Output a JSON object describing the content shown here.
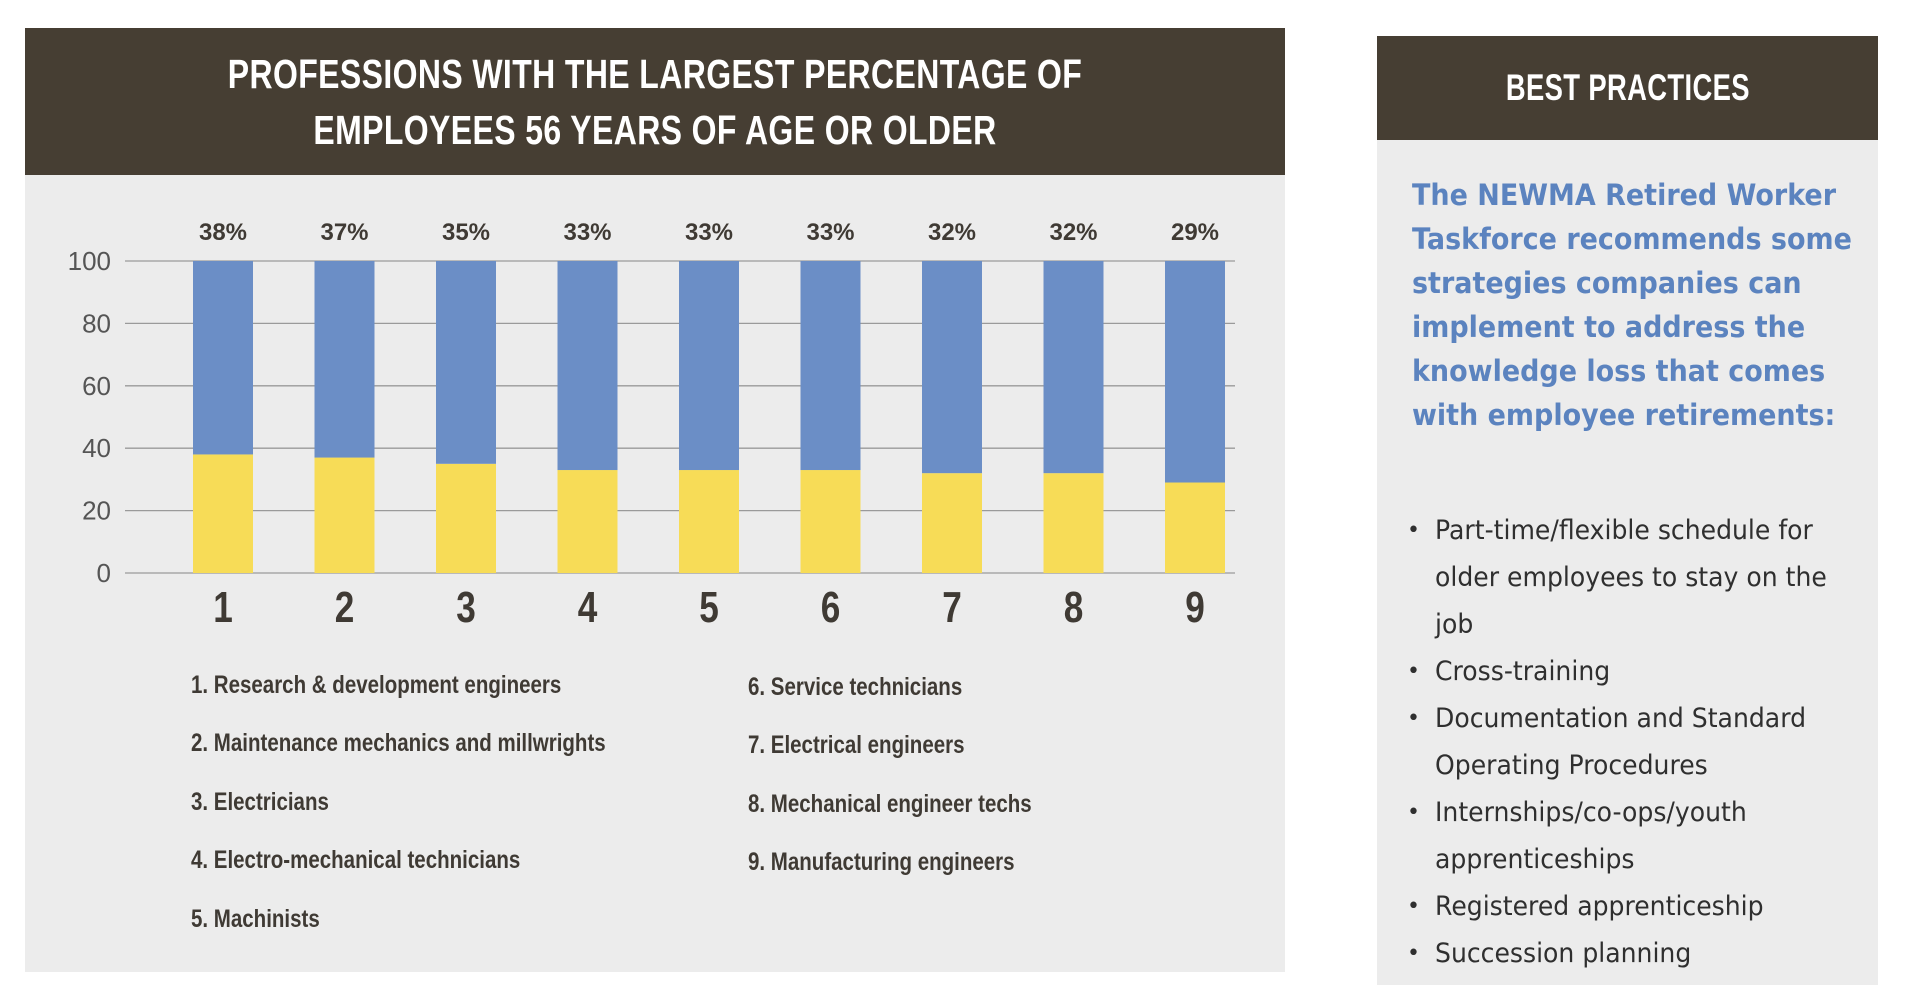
{
  "chart_panel": {
    "title": "PROFESSIONS WITH THE LARGEST PERCENTAGE OF EMPLOYEES 56 YEARS OF AGE OR OLDER"
  },
  "chart_data": {
    "type": "bar",
    "stacked": true,
    "categories": [
      "1",
      "2",
      "3",
      "4",
      "5",
      "6",
      "7",
      "8",
      "9"
    ],
    "data_labels": [
      "38%",
      "37%",
      "35%",
      "33%",
      "33%",
      "33%",
      "32%",
      "32%",
      "29%"
    ],
    "series": [
      {
        "color": "#f7dc57",
        "values": [
          38,
          37,
          35,
          33,
          33,
          33,
          32,
          32,
          29
        ]
      },
      {
        "color": "#6b8ec6",
        "values": [
          62,
          63,
          65,
          67,
          67,
          67,
          68,
          68,
          71
        ]
      }
    ],
    "yticks": [
      "0",
      "20",
      "40",
      "60",
      "80",
      "100"
    ],
    "ylim": [
      0,
      100
    ],
    "grid": true,
    "legend_left": [
      "1. Research & development engineers",
      "2. Maintenance mechanics and millwrights",
      "3. Electricians",
      "4. Electro-mechanical technicians",
      "5. Machinists"
    ],
    "legend_right": [
      "6. Service technicians",
      "7. Electrical engineers",
      "8. Mechanical engineer techs",
      "9. Manufacturing engineers"
    ]
  },
  "best_practices": {
    "title": "BEST PRACTICES",
    "intro": "The NEWMA Retired Worker Taskforce recommends some strategies companies can implement to address the knowledge loss that comes with employee retirements:",
    "items": [
      "Part-time/flexible schedule for older employees to stay on the job",
      "Cross-training",
      "Documentation and Standard Operating Procedures",
      "Internships/co-ops/youth apprenticeships",
      "Registered apprenticeship",
      "Succession planning"
    ]
  },
  "colors": {
    "header_bg": "#463e33",
    "panel_bg": "#ececec",
    "accent_blue": "#6b8ec6",
    "accent_yellow": "#f7dc57",
    "intro_text": "#5b83bf"
  }
}
